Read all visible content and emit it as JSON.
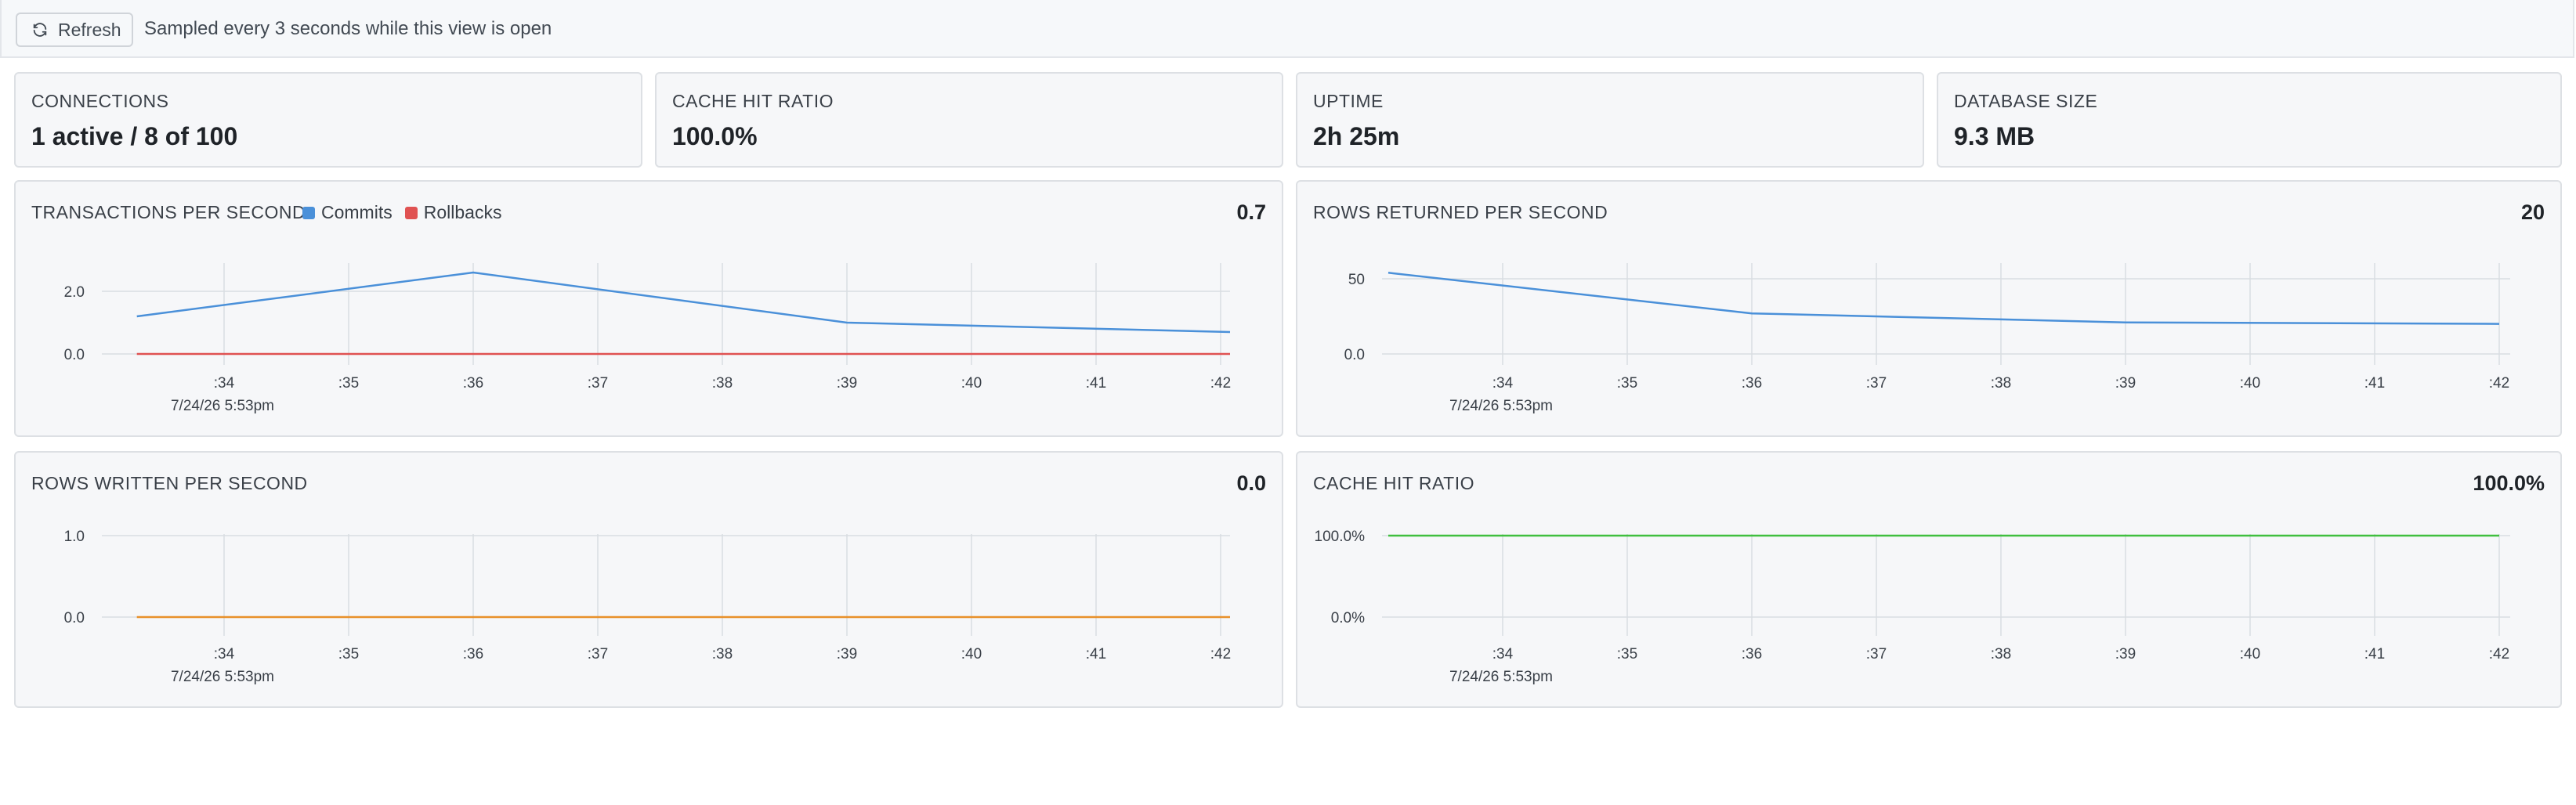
{
  "toolbar": {
    "refresh_label": "Refresh",
    "sampled_text": "Sampled every 3 seconds while this view is open"
  },
  "stats": {
    "connections": {
      "label": "CONNECTIONS",
      "value": "1 active / 8 of 100"
    },
    "cache_hit_ratio": {
      "label": "CACHE HIT RATIO",
      "value": "100.0%"
    },
    "uptime": {
      "label": "UPTIME",
      "value": "2h 25m"
    },
    "database_size": {
      "label": "DATABASE SIZE",
      "value": "9.3 MB"
    }
  },
  "charts": {
    "tps": {
      "title": "TRANSACTIONS PER SECOND",
      "current": "0.7"
    },
    "rows_returned": {
      "title": "ROWS RETURNED PER SECOND",
      "current": "20"
    },
    "rows_written": {
      "title": "ROWS WRITTEN PER SECOND",
      "current": "0.0"
    },
    "cache": {
      "title": "CACHE HIT RATIO",
      "current": "100.0%"
    }
  },
  "chart_data": [
    {
      "id": "tps",
      "type": "line",
      "title": "TRANSACTIONS PER SECOND",
      "x_ticks": [
        ":34",
        ":35",
        ":36",
        ":37",
        ":38",
        ":39",
        ":40",
        ":41",
        ":42"
      ],
      "date_label": "7/24/26 5:53pm",
      "y_ticks": [
        "2.0",
        "0.0"
      ],
      "ylim": [
        0,
        3.0
      ],
      "grid": true,
      "series": [
        {
          "name": "Commits",
          "color": "#4a90d9",
          "x": [
            33.3,
            36.0,
            39.0,
            42.1
          ],
          "y": [
            1.2,
            2.6,
            1.0,
            0.7
          ]
        },
        {
          "name": "Rollbacks",
          "color": "#e05252",
          "x": [
            33.3,
            42.1
          ],
          "y": [
            0.0,
            0.0
          ]
        }
      ]
    },
    {
      "id": "rows_returned",
      "type": "line",
      "title": "ROWS RETURNED PER SECOND",
      "x_ticks": [
        ":34",
        ":35",
        ":36",
        ":37",
        ":38",
        ":39",
        ":40",
        ":41",
        ":42"
      ],
      "date_label": "7/24/26 5:53pm",
      "y_ticks": [
        "50",
        "0.0"
      ],
      "ylim": [
        0,
        62
      ],
      "grid": true,
      "series": [
        {
          "color": "#4a90d9",
          "x": [
            33.0,
            36.0,
            39.0,
            42.0
          ],
          "y": [
            54,
            27,
            21,
            20
          ]
        }
      ]
    },
    {
      "id": "rows_written",
      "type": "line",
      "title": "ROWS WRITTEN PER SECOND",
      "x_ticks": [
        ":34",
        ":35",
        ":36",
        ":37",
        ":38",
        ":39",
        ":40",
        ":41",
        ":42"
      ],
      "date_label": "7/24/26 5:53pm",
      "y_ticks": [
        "1.0",
        "0.0"
      ],
      "ylim": [
        0,
        1.0
      ],
      "grid": true,
      "series": [
        {
          "color": "#e8902a",
          "x": [
            33.3,
            42.1
          ],
          "y": [
            0.0,
            0.0
          ]
        }
      ]
    },
    {
      "id": "cache",
      "type": "line",
      "title": "CACHE HIT RATIO",
      "x_ticks": [
        ":34",
        ":35",
        ":36",
        ":37",
        ":38",
        ":39",
        ":40",
        ":41",
        ":42"
      ],
      "date_label": "7/24/26 5:53pm",
      "y_ticks": [
        "100.0%",
        "0.0%"
      ],
      "ylim": [
        0,
        100
      ],
      "grid": true,
      "series": [
        {
          "color": "#3fbf3f",
          "x": [
            33.0,
            42.0
          ],
          "y": [
            100,
            100
          ]
        }
      ]
    }
  ]
}
